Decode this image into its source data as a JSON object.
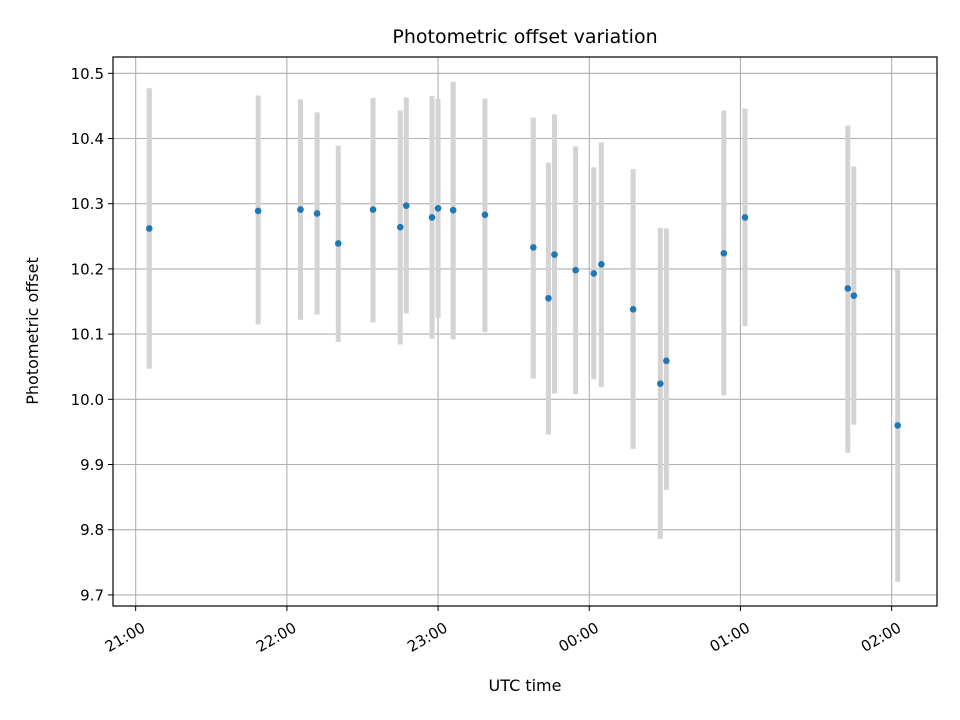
{
  "chart_data": {
    "type": "scatter",
    "title": "Photometric offset variation",
    "xlabel": "UTC time",
    "ylabel": "Photometric offset",
    "x_ticks": [
      "21:00",
      "22:00",
      "23:00",
      "00:00",
      "01:00",
      "02:00"
    ],
    "x_tick_hours": [
      0,
      1,
      2,
      3,
      4,
      5
    ],
    "xlim_hours": [
      -0.15,
      5.3
    ],
    "ylim": [
      9.683,
      10.525
    ],
    "y_ticks": [
      "9.7",
      "9.8",
      "9.9",
      "10.0",
      "10.1",
      "10.2",
      "10.3",
      "10.4",
      "10.5"
    ],
    "y_tick_values": [
      9.7,
      9.8,
      9.9,
      10.0,
      10.1,
      10.2,
      10.3,
      10.4,
      10.5
    ],
    "grid": true,
    "colors": {
      "point": "#1f77b4",
      "errorbar": "#d3d3d3",
      "grid": "#b0b0b0"
    },
    "points": [
      {
        "t": 0.09,
        "y": 10.262,
        "lo": 10.047,
        "hi": 10.477
      },
      {
        "t": 0.81,
        "y": 10.289,
        "lo": 10.115,
        "hi": 10.466
      },
      {
        "t": 1.09,
        "y": 10.291,
        "lo": 10.122,
        "hi": 10.46
      },
      {
        "t": 1.2,
        "y": 10.285,
        "lo": 10.13,
        "hi": 10.44
      },
      {
        "t": 1.34,
        "y": 10.239,
        "lo": 10.088,
        "hi": 10.389
      },
      {
        "t": 1.57,
        "y": 10.291,
        "lo": 10.118,
        "hi": 10.462
      },
      {
        "t": 1.75,
        "y": 10.264,
        "lo": 10.084,
        "hi": 10.443
      },
      {
        "t": 1.79,
        "y": 10.297,
        "lo": 10.132,
        "hi": 10.463
      },
      {
        "t": 1.96,
        "y": 10.279,
        "lo": 10.093,
        "hi": 10.465
      },
      {
        "t": 2.0,
        "y": 10.293,
        "lo": 10.125,
        "hi": 10.461
      },
      {
        "t": 2.1,
        "y": 10.29,
        "lo": 10.092,
        "hi": 10.487
      },
      {
        "t": 2.31,
        "y": 10.283,
        "lo": 10.103,
        "hi": 10.461
      },
      {
        "t": 2.63,
        "y": 10.233,
        "lo": 10.032,
        "hi": 10.432
      },
      {
        "t": 2.73,
        "y": 10.155,
        "lo": 9.946,
        "hi": 10.363
      },
      {
        "t": 2.77,
        "y": 10.222,
        "lo": 10.009,
        "hi": 10.437
      },
      {
        "t": 2.91,
        "y": 10.198,
        "lo": 10.008,
        "hi": 10.388
      },
      {
        "t": 3.03,
        "y": 10.193,
        "lo": 10.031,
        "hi": 10.356
      },
      {
        "t": 3.08,
        "y": 10.207,
        "lo": 10.019,
        "hi": 10.394
      },
      {
        "t": 3.29,
        "y": 10.138,
        "lo": 9.924,
        "hi": 10.353
      },
      {
        "t": 3.47,
        "y": 10.024,
        "lo": 9.786,
        "hi": 10.263
      },
      {
        "t": 3.51,
        "y": 10.059,
        "lo": 9.861,
        "hi": 10.262
      },
      {
        "t": 3.89,
        "y": 10.224,
        "lo": 10.006,
        "hi": 10.443
      },
      {
        "t": 4.03,
        "y": 10.279,
        "lo": 10.112,
        "hi": 10.446
      },
      {
        "t": 4.71,
        "y": 10.17,
        "lo": 9.918,
        "hi": 10.42
      },
      {
        "t": 4.75,
        "y": 10.159,
        "lo": 9.961,
        "hi": 10.357
      },
      {
        "t": 5.04,
        "y": 9.96,
        "lo": 9.72,
        "hi": 10.2
      }
    ]
  }
}
